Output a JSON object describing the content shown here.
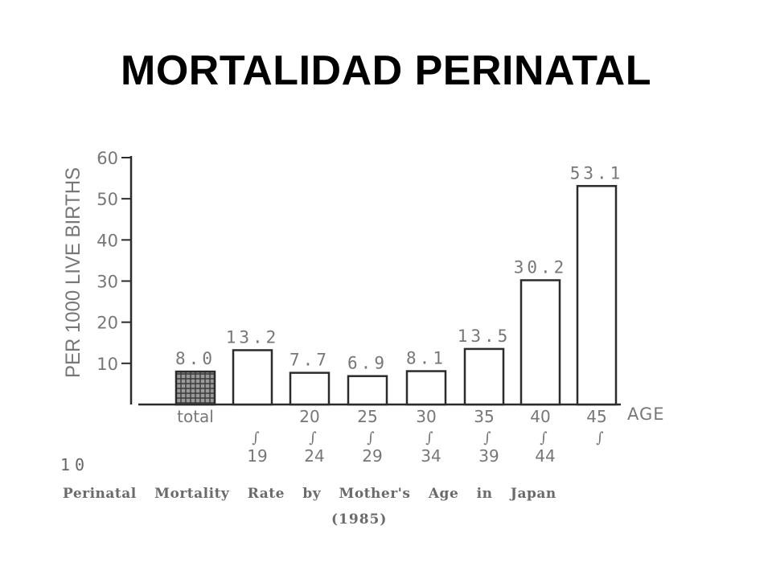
{
  "title": "MORTALIDAD PERINATAL",
  "figure_number": "10",
  "caption": "Perinatal Mortality Rate by Mother's Age in Japan",
  "caption_year": "(1985)",
  "chart_data": {
    "type": "bar",
    "ylabel": "PER 1000 LIVE BIRTHS",
    "xlabel": "AGE",
    "ylim": [
      0,
      60
    ],
    "yticks": [
      10,
      20,
      30,
      40,
      50,
      60
    ],
    "categories": [
      {
        "top": "total",
        "sep": "",
        "bottom": ""
      },
      {
        "top": "",
        "sep": "∫",
        "bottom": "19"
      },
      {
        "top": "20",
        "sep": "∫",
        "bottom": "24"
      },
      {
        "top": "25",
        "sep": "∫",
        "bottom": "29"
      },
      {
        "top": "30",
        "sep": "∫",
        "bottom": "34"
      },
      {
        "top": "35",
        "sep": "∫",
        "bottom": "39"
      },
      {
        "top": "40",
        "sep": "∫",
        "bottom": "44"
      },
      {
        "top": "45",
        "sep": "∫",
        "bottom": ""
      }
    ],
    "values": [
      8.0,
      13.2,
      7.7,
      6.9,
      8.1,
      13.5,
      30.2,
      53.1
    ],
    "value_labels": [
      "8.0",
      "13.2",
      "7.7",
      "6.9",
      "8.1",
      "13.5",
      "30.2",
      "53.1"
    ],
    "highlight_index": 0,
    "grid": false
  }
}
